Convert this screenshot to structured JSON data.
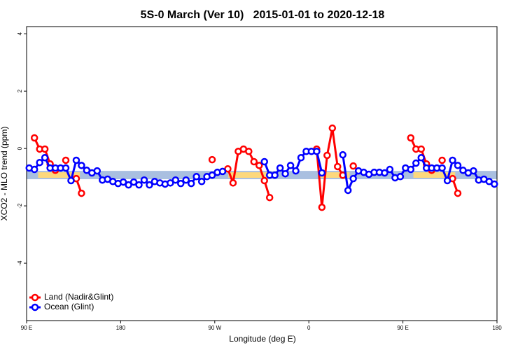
{
  "chart_data": {
    "type": "line",
    "title": "5S-0 March (Ver 10)   2015-01-01 to 2020-12-18",
    "x_label": "Longitude (deg E)",
    "y_label": "XCO2 - MLO trend (ppm)",
    "xlim": [
      90,
      540
    ],
    "ylim": [
      -6,
      4.25
    ],
    "xticks": [
      {
        "value": 90,
        "label": "90 E"
      },
      180,
      {
        "value": 270,
        "label": "90 W"
      },
      {
        "value": 360,
        "label": "0"
      },
      {
        "value": 450,
        "label": "90 E"
      },
      {
        "value": 540,
        "label": "180"
      }
    ],
    "yticks": [
      4,
      2,
      0,
      -2,
      -4
    ],
    "legend": "bottom-left",
    "band": {
      "ylim": [
        -1.07,
        -0.78
      ],
      "color": "#a9bfe0",
      "land_ranges": [
        [
          101,
          141
        ],
        [
          283,
          320
        ],
        [
          369,
          399
        ],
        [
          460,
          500
        ]
      ],
      "land_color": "#fdd87c"
    },
    "x": [
      92.5,
      97.5,
      102.5,
      107.5,
      112.5,
      117.5,
      122.5,
      127.5,
      132.5,
      137.5,
      142.5,
      147.5,
      152.5,
      157.5,
      162.5,
      167.5,
      172.5,
      177.5,
      182.5,
      187.5,
      192.5,
      197.5,
      202.5,
      207.5,
      212.5,
      217.5,
      222.5,
      227.5,
      232.5,
      237.5,
      242.5,
      247.5,
      252.5,
      257.5,
      262.5,
      267.5,
      272.5,
      277.5,
      282.5,
      287.5,
      292.5,
      297.5,
      302.5,
      307.5,
      312.5,
      317.5,
      322.5,
      327.5,
      332.5,
      337.5,
      342.5,
      347.5,
      352.5,
      357.5,
      362.5,
      367.5,
      372.5,
      377.5,
      382.5,
      387.5,
      392.5,
      397.5,
      402.5,
      407.5,
      412.5,
      417.5,
      422.5,
      427.5,
      432.5,
      437.5,
      442.5,
      447.5,
      452.5,
      457.5,
      462.5,
      467.5,
      472.5,
      477.5,
      482.5,
      487.5,
      492.5,
      497.5,
      502.5,
      507.5,
      512.5,
      517.5,
      522.5,
      527.5,
      532.5,
      537.5
    ],
    "series": [
      {
        "name": "Land (Nadir&Glint)",
        "color": "#ff0000",
        "values": [
          null,
          0.37,
          -0.02,
          -0.02,
          -0.54,
          -0.76,
          null,
          -0.41,
          null,
          -1.05,
          -1.56,
          null,
          null,
          null,
          null,
          null,
          null,
          null,
          null,
          null,
          null,
          null,
          null,
          null,
          null,
          null,
          null,
          null,
          null,
          null,
          null,
          null,
          null,
          null,
          null,
          -0.39,
          null,
          null,
          -0.71,
          -1.2,
          -0.1,
          -0.02,
          -0.1,
          -0.46,
          -0.59,
          -1.12,
          -1.71,
          null,
          null,
          null,
          null,
          null,
          null,
          null,
          null,
          -0.02,
          -2.05,
          -0.24,
          0.71,
          -0.63,
          -0.93,
          null,
          -0.61,
          null,
          null,
          null,
          null,
          null,
          null,
          null,
          null,
          null,
          null,
          0.37,
          -0.02,
          -0.02,
          -0.54,
          -0.76,
          null,
          -0.41,
          null,
          -1.05,
          -1.56,
          null,
          null,
          null,
          null,
          null,
          null,
          null
        ]
      },
      {
        "name": "Ocean (Glint)",
        "color": "#0000ff",
        "values": [
          -0.68,
          -0.73,
          -0.49,
          -0.32,
          -0.68,
          -0.68,
          -0.68,
          -0.68,
          -1.12,
          -0.41,
          -0.59,
          -0.76,
          -0.85,
          -0.78,
          -1.1,
          -1.07,
          -1.15,
          -1.22,
          -1.17,
          -1.27,
          -1.17,
          -1.27,
          -1.1,
          -1.27,
          -1.15,
          -1.2,
          -1.24,
          -1.2,
          -1.1,
          -1.22,
          -1.1,
          -1.22,
          -0.98,
          -1.15,
          -0.98,
          -0.93,
          -0.83,
          -0.8,
          null,
          null,
          null,
          null,
          null,
          null,
          null,
          -0.46,
          -0.93,
          -0.93,
          -0.68,
          -0.88,
          -0.59,
          -0.78,
          -0.32,
          -0.1,
          -0.1,
          -0.1,
          -0.85,
          null,
          null,
          null,
          -0.22,
          -1.46,
          -1.05,
          -0.78,
          -0.83,
          -0.9,
          -0.83,
          -0.83,
          -0.85,
          -0.73,
          -1.02,
          -0.98,
          -0.68,
          -0.73,
          -0.51,
          -0.32,
          -0.68,
          -0.68,
          -0.68,
          -0.68,
          -1.12,
          -0.41,
          -0.59,
          -0.76,
          -0.85,
          -0.78,
          -1.1,
          -1.07,
          -1.15,
          -1.24
        ]
      }
    ]
  }
}
